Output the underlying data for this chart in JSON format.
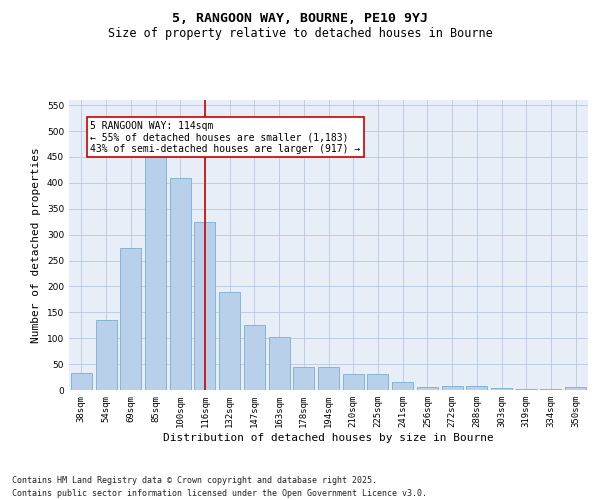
{
  "title": "5, RANGOON WAY, BOURNE, PE10 9YJ",
  "subtitle": "Size of property relative to detached houses in Bourne",
  "xlabel": "Distribution of detached houses by size in Bourne",
  "ylabel": "Number of detached properties",
  "categories": [
    "38sqm",
    "54sqm",
    "69sqm",
    "85sqm",
    "100sqm",
    "116sqm",
    "132sqm",
    "147sqm",
    "163sqm",
    "178sqm",
    "194sqm",
    "210sqm",
    "225sqm",
    "241sqm",
    "256sqm",
    "272sqm",
    "288sqm",
    "303sqm",
    "319sqm",
    "334sqm",
    "350sqm"
  ],
  "values": [
    33,
    135,
    275,
    450,
    410,
    325,
    190,
    125,
    102,
    44,
    44,
    30,
    30,
    16,
    6,
    8,
    8,
    3,
    2,
    2,
    6
  ],
  "bar_color": "#b8d0ea",
  "bar_edge_color": "#7aadd4",
  "vline_x_index": 5,
  "vline_color": "#cc0000",
  "annotation_text": "5 RANGOON WAY: 114sqm\n← 55% of detached houses are smaller (1,183)\n43% of semi-detached houses are larger (917) →",
  "annotation_box_color": "#ffffff",
  "annotation_box_edge_color": "#cc0000",
  "ylim": [
    0,
    560
  ],
  "yticks": [
    0,
    50,
    100,
    150,
    200,
    250,
    300,
    350,
    400,
    450,
    500,
    550
  ],
  "background_color": "#e8eef8",
  "footer_text": "Contains HM Land Registry data © Crown copyright and database right 2025.\nContains public sector information licensed under the Open Government Licence v3.0.",
  "title_fontsize": 9.5,
  "subtitle_fontsize": 8.5,
  "axis_label_fontsize": 8,
  "tick_fontsize": 6.5,
  "annotation_fontsize": 7,
  "footer_fontsize": 6
}
